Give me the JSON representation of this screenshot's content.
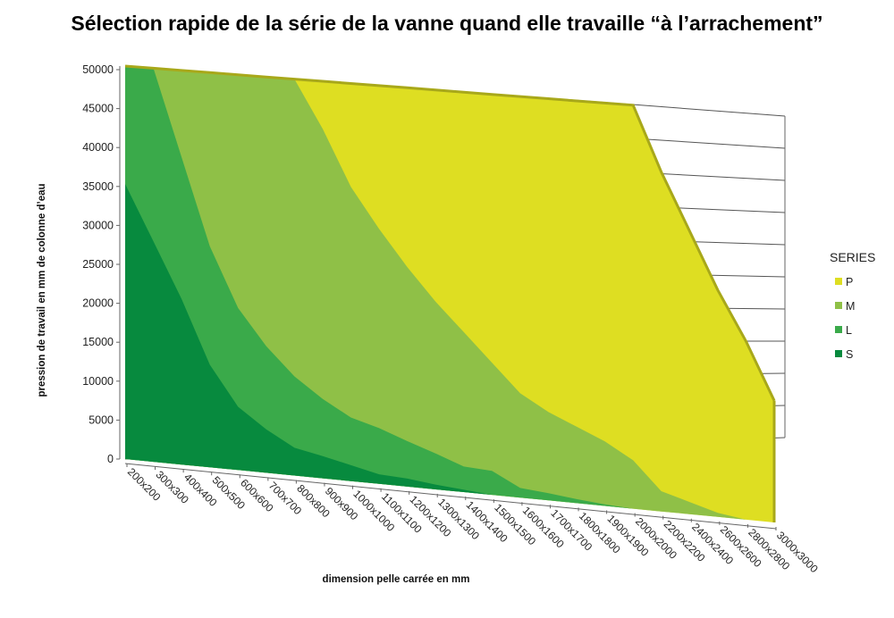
{
  "chart_data": {
    "type": "area",
    "title": "Sélection rapide de la série de la vanne quand elle travaille “à l’arrachement”",
    "xlabel": "dimension pelle carrée en mm",
    "ylabel": "pression de travail en mm de colonne d’eau",
    "ylim": [
      0,
      50000
    ],
    "yticks": [
      "0",
      "5000",
      "10000",
      "15000",
      "20000",
      "25000",
      "30000",
      "35000",
      "40000",
      "45000",
      "50000"
    ],
    "categories": [
      "200x200",
      "300x300",
      "400x400",
      "500x500",
      "600x600",
      "700x700",
      "800x800",
      "900x900",
      "1000x1000",
      "1100x1100",
      "1200x1200",
      "1300x1300",
      "1400x1400",
      "1500x1500",
      "1600x1600",
      "1700x1700",
      "1800x1800",
      "1900x1900",
      "2000x2000",
      "2200x2200",
      "2400x2400",
      "2600x2600",
      "2800x2800",
      "3000x3000"
    ],
    "series": [
      {
        "name": "P",
        "color": "#dede22",
        "values": [
          50000,
          50000,
          50000,
          50000,
          50000,
          50000,
          50000,
          50000,
          50000,
          50000,
          50000,
          50000,
          50000,
          50000,
          50000,
          50000,
          50000,
          50000,
          50000,
          42000,
          35000,
          28000,
          22000,
          15000
        ]
      },
      {
        "name": "M",
        "color": "#8fc047",
        "values": [
          50000,
          50000,
          50000,
          50000,
          50000,
          50000,
          50000,
          44000,
          37000,
          32000,
          27500,
          23500,
          20000,
          16500,
          13000,
          11000,
          9500,
          8000,
          6000,
          2500,
          1500,
          500,
          0,
          0
        ]
      },
      {
        "name": "L",
        "color": "#3aaa4a",
        "values": [
          50000,
          50000,
          39000,
          28000,
          20500,
          16000,
          12500,
          10000,
          8000,
          7000,
          5700,
          4500,
          3200,
          3000,
          1200,
          900,
          500,
          200,
          0,
          0,
          0,
          0,
          0,
          0
        ]
      },
      {
        "name": "S",
        "color": "#078a3e",
        "values": [
          35000,
          28000,
          21000,
          13000,
          8000,
          5500,
          3500,
          2800,
          2000,
          1200,
          1000,
          600,
          300,
          0,
          0,
          0,
          0,
          0,
          0,
          0,
          0,
          0,
          0,
          0
        ]
      }
    ],
    "legend": {
      "title": "SERIES",
      "position": "right"
    },
    "grid": true
  }
}
